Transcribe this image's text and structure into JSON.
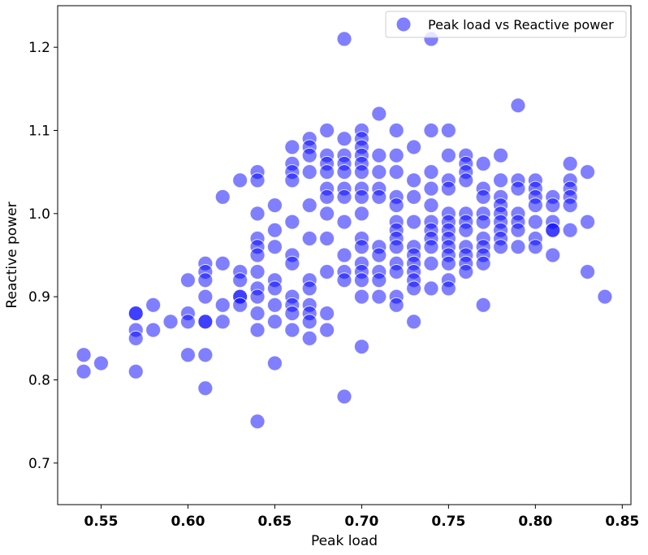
{
  "chart_data": {
    "type": "scatter",
    "xlabel": "Peak load",
    "ylabel": "Reactive power",
    "xlim": [
      0.525,
      0.855
    ],
    "ylim": [
      0.65,
      1.25
    ],
    "xticks": [
      0.55,
      {
        "value": 0.6,
        "label": "0.60"
      },
      0.65,
      {
        "value": 0.7,
        "label": "0.70"
      },
      0.75,
      {
        "value": 0.8,
        "label": "0.80"
      },
      0.85
    ],
    "yticks": [
      0.7,
      0.8,
      0.9,
      {
        "value": 1,
        "label": "1.0"
      },
      1.1,
      1.2
    ],
    "legend": "upper right",
    "alpha": 0.5,
    "grid": false,
    "series": [
      {
        "name": "Peak load vs Reactive power",
        "color": "#0000ff",
        "x": [
          0.54,
          0.54,
          0.55,
          0.57,
          0.57,
          0.57,
          0.57,
          0.57,
          0.58,
          0.58,
          0.59,
          0.6,
          0.6,
          0.6,
          0.6,
          0.61,
          0.61,
          0.61,
          0.61,
          0.61,
          0.61,
          0.61,
          0.61,
          0.62,
          0.62,
          0.62,
          0.62,
          0.63,
          0.63,
          0.63,
          0.63,
          0.63,
          0.63,
          0.64,
          0.64,
          0.64,
          0.64,
          0.64,
          0.64,
          0.64,
          0.64,
          0.64,
          0.64,
          0.64,
          0.64,
          0.65,
          0.65,
          0.65,
          0.65,
          0.65,
          0.65,
          0.65,
          0.65,
          0.66,
          0.66,
          0.66,
          0.66,
          0.66,
          0.66,
          0.66,
          0.66,
          0.66,
          0.66,
          0.66,
          0.67,
          0.67,
          0.67,
          0.67,
          0.67,
          0.67,
          0.67,
          0.67,
          0.67,
          0.67,
          0.67,
          0.67,
          0.68,
          0.68,
          0.68,
          0.68,
          0.68,
          0.68,
          0.68,
          0.68,
          0.68,
          0.68,
          0.68,
          0.69,
          0.69,
          0.69,
          0.69,
          0.69,
          0.69,
          0.69,
          0.69,
          0.69,
          0.69,
          0.69,
          0.69,
          0.7,
          0.7,
          0.7,
          0.7,
          0.7,
          0.7,
          0.7,
          0.7,
          0.7,
          0.7,
          0.7,
          0.7,
          0.7,
          0.7,
          0.7,
          0.7,
          0.71,
          0.71,
          0.71,
          0.71,
          0.71,
          0.71,
          0.71,
          0.71,
          0.71,
          0.71,
          0.72,
          0.72,
          0.72,
          0.72,
          0.72,
          0.72,
          0.72,
          0.72,
          0.72,
          0.72,
          0.72,
          0.72,
          0.72,
          0.73,
          0.73,
          0.73,
          0.73,
          0.73,
          0.73,
          0.73,
          0.73,
          0.73,
          0.73,
          0.73,
          0.74,
          0.74,
          0.74,
          0.74,
          0.74,
          0.74,
          0.74,
          0.74,
          0.74,
          0.74,
          0.74,
          0.75,
          0.75,
          0.75,
          0.75,
          0.75,
          0.75,
          0.75,
          0.75,
          0.75,
          0.75,
          0.75,
          0.75,
          0.75,
          0.76,
          0.76,
          0.76,
          0.76,
          0.76,
          0.76,
          0.76,
          0.76,
          0.76,
          0.76,
          0.76,
          0.77,
          0.77,
          0.77,
          0.77,
          0.77,
          0.77,
          0.77,
          0.77,
          0.77,
          0.77,
          0.78,
          0.78,
          0.78,
          0.78,
          0.78,
          0.78,
          0.78,
          0.78,
          0.78,
          0.79,
          0.79,
          0.79,
          0.79,
          0.79,
          0.79,
          0.79,
          0.8,
          0.8,
          0.8,
          0.8,
          0.8,
          0.8,
          0.8,
          0.81,
          0.81,
          0.81,
          0.81,
          0.81,
          0.81,
          0.82,
          0.82,
          0.82,
          0.82,
          0.82,
          0.82,
          0.83,
          0.83,
          0.83,
          0.84
        ],
        "values": [
          0.83,
          0.81,
          0.82,
          0.88,
          0.88,
          0.86,
          0.85,
          0.81,
          0.89,
          0.86,
          0.87,
          0.92,
          0.88,
          0.87,
          0.83,
          0.94,
          0.93,
          0.92,
          0.9,
          0.87,
          0.87,
          0.83,
          0.79,
          1.02,
          0.94,
          0.89,
          0.87,
          1.04,
          0.93,
          0.92,
          0.9,
          0.9,
          0.89,
          1.05,
          1.04,
          1.0,
          0.97,
          0.96,
          0.95,
          0.93,
          0.91,
          0.9,
          0.88,
          0.86,
          0.75,
          1.01,
          0.98,
          0.96,
          0.92,
          0.91,
          0.89,
          0.87,
          0.82,
          1.08,
          1.06,
          1.05,
          1.04,
          0.99,
          0.95,
          0.94,
          0.9,
          0.89,
          0.88,
          0.86,
          1.09,
          1.08,
          1.07,
          1.05,
          1.01,
          0.97,
          0.92,
          0.91,
          0.89,
          0.88,
          0.87,
          0.85,
          1.1,
          1.07,
          1.06,
          1.05,
          1.03,
          1.02,
          1.0,
          0.97,
          0.93,
          0.88,
          0.86,
          1.21,
          1.09,
          1.07,
          1.06,
          1.05,
          1.03,
          1.02,
          0.99,
          0.95,
          0.93,
          0.92,
          0.78,
          1.1,
          1.09,
          1.08,
          1.07,
          1.06,
          1.05,
          1.03,
          1.02,
          1.0,
          0.97,
          0.96,
          0.94,
          0.93,
          0.92,
          0.9,
          0.84,
          1.12,
          1.07,
          1.05,
          1.03,
          1.02,
          0.96,
          0.95,
          0.93,
          0.92,
          0.9,
          1.1,
          1.07,
          1.05,
          1.02,
          1.01,
          0.99,
          0.98,
          0.97,
          0.96,
          0.94,
          0.93,
          0.9,
          0.89,
          1.08,
          1.04,
          1.02,
          0.99,
          0.96,
          0.95,
          0.94,
          0.93,
          0.92,
          0.91,
          0.87,
          1.21,
          1.1,
          1.05,
          1.03,
          1.01,
          0.99,
          0.98,
          0.97,
          0.96,
          0.94,
          0.91,
          1.1,
          1.07,
          1.04,
          1.03,
          1.0,
          0.99,
          0.98,
          0.97,
          0.96,
          0.95,
          0.94,
          0.92,
          0.91,
          1.07,
          1.06,
          1.05,
          1.04,
          1.0,
          0.99,
          0.98,
          0.96,
          0.95,
          0.94,
          0.93,
          1.06,
          1.03,
          1.02,
          1.0,
          0.99,
          0.97,
          0.96,
          0.95,
          0.94,
          0.89,
          1.07,
          1.04,
          1.02,
          1.01,
          1.0,
          0.99,
          0.98,
          0.97,
          0.96,
          1.13,
          1.04,
          1.03,
          1.0,
          0.99,
          0.98,
          0.96,
          1.04,
          1.03,
          1.02,
          1.01,
          0.99,
          0.97,
          0.96,
          1.02,
          1.01,
          0.99,
          0.98,
          0.98,
          0.95,
          1.06,
          1.04,
          1.03,
          1.02,
          1.01,
          0.98,
          1.05,
          0.99,
          0.93,
          0.9
        ]
      }
    ]
  }
}
